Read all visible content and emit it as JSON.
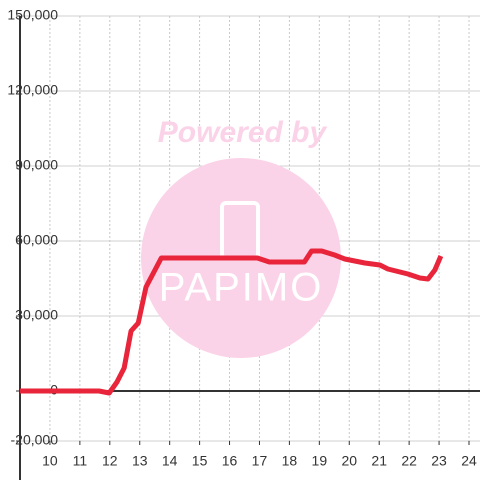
{
  "chart_data": {
    "type": "line",
    "annotations": [
      "Powered by",
      "PAPIMO"
    ],
    "x": [
      9,
      11.64,
      11.98,
      12.24,
      12.48,
      12.71,
      12.95,
      13.21,
      13.72,
      16.93,
      17.33,
      18.5,
      18.74,
      19.08,
      19.51,
      19.85,
      20.52,
      21.02,
      21.29,
      21.96,
      22.36,
      22.63,
      22.86,
      23.06
    ],
    "series": [
      {
        "color": "#e8253a",
        "values": [
          0,
          0,
          -800,
          3600,
          9200,
          24000,
          27200,
          41600,
          53200,
          53200,
          51600,
          51600,
          56000,
          56000,
          54400,
          52800,
          51200,
          50400,
          48800,
          46800,
          45200,
          44800,
          48400,
          54000
        ]
      }
    ],
    "xlim": [
      9,
      24
    ],
    "xticks": [
      10,
      11,
      12,
      13,
      14,
      15,
      16,
      17,
      18,
      19,
      20,
      21,
      22,
      23,
      24
    ],
    "ylim": [
      -20000,
      150000
    ],
    "yticks": [
      {
        "value": -20000,
        "label": "-20,000"
      },
      {
        "value": 0,
        "label": "0"
      },
      {
        "value": 30000,
        "label": "30,000"
      },
      {
        "value": 60000,
        "label": "60,000"
      },
      {
        "value": 90000,
        "label": "90,000"
      },
      {
        "value": 120000,
        "label": "120,000"
      },
      {
        "value": 150000,
        "label": "150,000"
      }
    ],
    "grid": true
  }
}
